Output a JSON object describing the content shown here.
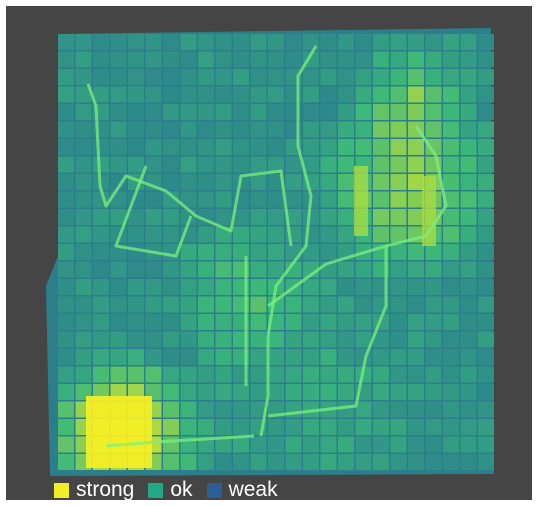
{
  "legend": {
    "items": [
      {
        "label": "strong",
        "color": "#f2ee26"
      },
      {
        "label": "ok",
        "color": "#22a884"
      },
      {
        "label": "weak",
        "color": "#2b5d96"
      }
    ]
  },
  "colors": {
    "background": "#454545",
    "teal": "#2e8a8a",
    "green": "#3dbd78",
    "yellowgreen": "#a8dc45",
    "yellow": "#f2ee26",
    "trajectory": "#7cf07c"
  }
}
